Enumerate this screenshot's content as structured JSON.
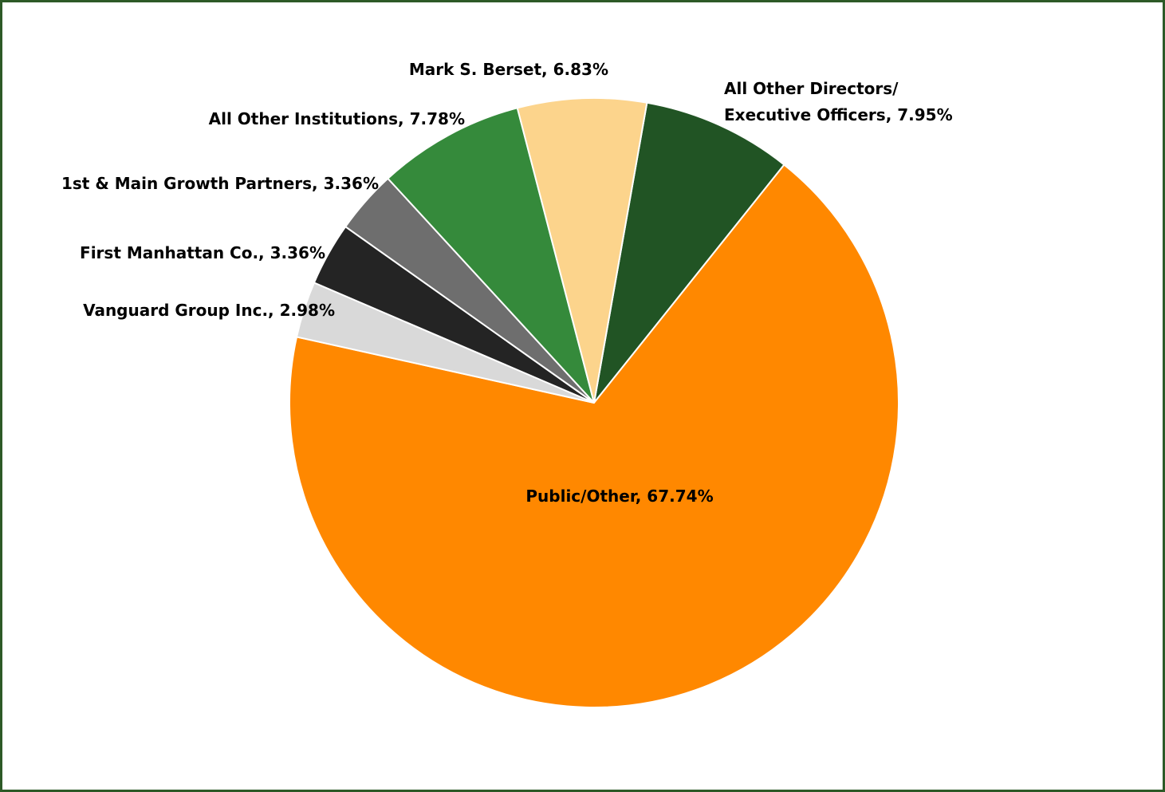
{
  "chart_data": {
    "type": "pie",
    "labels": [
      [
        "All Other Directors/",
        "Executive Officers, 7.95%"
      ],
      [
        "Public/Other, 67.74%"
      ],
      [
        "Vanguard Group Inc., 2.98%"
      ],
      [
        "First Manhattan Co., 3.36%"
      ],
      [
        "1st & Main Growth Partners, 3.36%"
      ],
      [
        "All Other Institutions, 7.78%"
      ],
      [
        "Mark S. Berset, 6.83%"
      ]
    ],
    "values": [
      7.95,
      67.74,
      2.98,
      3.36,
      3.36,
      7.78,
      6.83
    ],
    "colors": [
      "#215424",
      "#ff8800",
      "#d9d9d9",
      "#242424",
      "#6e6e6e",
      "#358a3b",
      "#fcd48c"
    ]
  }
}
